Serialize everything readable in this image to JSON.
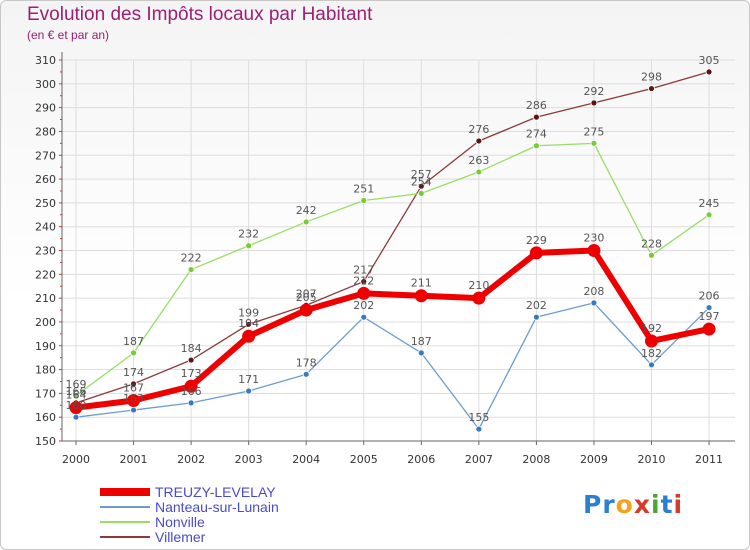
{
  "header": {
    "title": "Evolution des Impôts locaux par Habitant",
    "subtitle": "(en € et par an)"
  },
  "logo": {
    "text": "Proxiti",
    "colors": [
      "#2b7fd1",
      "#2b7fd1",
      "#f4a21b",
      "#d9382b",
      "#4aa832",
      "#2b7fd1",
      "#d9382b"
    ]
  },
  "chart_data": {
    "type": "line",
    "title": "Evolution des Impôts locaux par Habitant",
    "subtitle": "(en € et par an)",
    "xlabel": "",
    "ylabel": "",
    "categories": [
      "2000",
      "2001",
      "2002",
      "2003",
      "2004",
      "2005",
      "2006",
      "2007",
      "2008",
      "2009",
      "2010",
      "2011"
    ],
    "ylim": [
      150,
      310
    ],
    "yticks": [
      150,
      160,
      170,
      180,
      190,
      200,
      210,
      220,
      230,
      240,
      250,
      260,
      270,
      280,
      290,
      300,
      310
    ],
    "grid": true,
    "legend_position": "bottom-left",
    "series": [
      {
        "name": "Villemer",
        "color": "#8b3a3a",
        "dot": "#5a1515",
        "width": 1.3,
        "values": [
          166,
          174,
          184,
          199,
          207,
          217,
          257,
          276,
          286,
          292,
          298,
          305
        ],
        "labels": [
          "166",
          "174",
          "184",
          "199",
          "207",
          "217",
          "257",
          "276",
          "286",
          "292",
          "298",
          "305"
        ]
      },
      {
        "name": "Nonville",
        "color": "#99dd66",
        "dot": "#77cc33",
        "width": 1.3,
        "values": [
          169,
          187,
          222,
          232,
          242,
          251,
          254,
          263,
          274,
          275,
          228,
          245
        ],
        "labels": [
          "169",
          "187",
          "222",
          "232",
          "242",
          "251",
          "254",
          "263",
          "274",
          "275",
          "228",
          "245"
        ]
      },
      {
        "name": "Nanteau-sur-Lunain",
        "color": "#6c9ccf",
        "dot": "#3a78c0",
        "width": 1.3,
        "values": [
          160,
          163,
          166,
          171,
          178,
          202,
          187,
          155,
          202,
          208,
          182,
          206
        ],
        "labels": [
          "160",
          "163",
          "166",
          "171",
          "178",
          "202",
          "187",
          "155",
          "202",
          "208",
          "182",
          "206"
        ]
      },
      {
        "name": "TREUZY-LEVELAY",
        "color": "#ee0000",
        "dot": "#ee0000",
        "width": 6,
        "values": [
          164,
          167,
          173,
          194,
          205,
          212,
          211,
          210,
          229,
          230,
          192,
          197
        ],
        "labels": [
          "164",
          "167",
          "173",
          "194",
          "205",
          "212",
          "211",
          "210",
          "229",
          "230",
          "192",
          "197"
        ]
      }
    ]
  }
}
